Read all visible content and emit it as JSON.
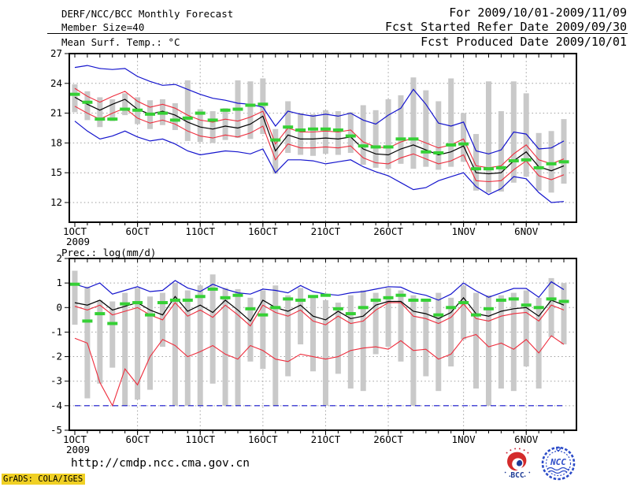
{
  "header": {
    "title": "DERF/NCC/BCC Monthly Forecast",
    "member_size": "Member Size=40",
    "temp_label": "Mean Surf. Temp.: °C",
    "for_range": "For 2009/10/01-2009/11/09",
    "started": "Fcst Started Refer Date 2009/09/30",
    "produced": "Fcst Produced Date 2009/10/01"
  },
  "footer": {
    "url": "http://cmdp.ncc.cma.gov.cn",
    "credit": "GrADS: COLA/IGES"
  },
  "logos": {
    "bcc": "BCC",
    "ncc": "NCC"
  },
  "colors": {
    "blue": "#1414cd",
    "red": "#ee2c3c",
    "black": "#000000",
    "green": "#35d035",
    "bar_gray": "#c9c9c9",
    "grid_gray": "#9e9e9e",
    "stamp_yellow": "#f0d024"
  },
  "chart_data": [
    {
      "type": "line",
      "title": "Mean Surf. Temp.: °C",
      "ylabel": "°C",
      "ylim": [
        10,
        27
      ],
      "yticks": [
        27,
        24,
        21,
        18,
        15,
        12
      ],
      "grid_y": [
        24,
        21,
        18,
        15,
        12
      ],
      "n_days": 40,
      "date_range": "2009/10/01-2009/11/09",
      "xticks": {
        "labels": [
          "1OCT",
          "6OCT",
          "11OCT",
          "16OCT",
          "21OCT",
          "26OCT",
          "1NOV",
          "6NOV"
        ],
        "days": [
          1,
          6,
          11,
          16,
          21,
          26,
          32,
          37
        ],
        "year": "2009",
        "grid_days": [
          6,
          11,
          16,
          21,
          26,
          32,
          37
        ]
      },
      "bars": {
        "name": "member-spread-bar",
        "color": "#c9c9c9",
        "hi": [
          23.9,
          23.2,
          22.6,
          22.4,
          23.0,
          22.6,
          22.3,
          22.4,
          22.0,
          24.3,
          21.4,
          21.2,
          21.5,
          24.3,
          24.2,
          24.5,
          19.4,
          22.2,
          21.0,
          20.9,
          21.3,
          21.2,
          21.1,
          21.8,
          21.3,
          22.4,
          22.8,
          24.6,
          23.3,
          22.2,
          24.5,
          21.0,
          18.9,
          24.2,
          21.2,
          24.2,
          23.0,
          19.0,
          19.2,
          20.4
        ],
        "lo": [
          21.1,
          20.3,
          19.6,
          20.2,
          20.8,
          19.9,
          19.4,
          19.8,
          19.3,
          18.2,
          18.1,
          18.0,
          18.3,
          18.5,
          18.4,
          18.9,
          14.9,
          17.0,
          16.8,
          16.7,
          16.9,
          16.8,
          17.0,
          15.8,
          15.5,
          15.4,
          15.9,
          15.4,
          15.6,
          15.3,
          15.6,
          16.1,
          13.2,
          13.0,
          13.1,
          14.0,
          14.6,
          13.2,
          13.0,
          13.9
        ]
      },
      "series": [
        {
          "name": "ensemble-max",
          "color": "#1414cd",
          "width": 1.2,
          "values": [
            25.6,
            25.8,
            25.5,
            25.4,
            25.5,
            24.7,
            24.2,
            23.8,
            23.9,
            23.4,
            22.9,
            22.5,
            22.3,
            22.0,
            21.9,
            21.6,
            19.7,
            21.2,
            20.9,
            20.7,
            20.9,
            20.7,
            21.0,
            20.3,
            19.9,
            20.8,
            21.5,
            23.4,
            21.9,
            20.0,
            19.7,
            20.1,
            17.2,
            16.9,
            17.3,
            19.1,
            18.9,
            17.4,
            17.5,
            18.2
          ]
        },
        {
          "name": "ensemble-min",
          "color": "#1414cd",
          "width": 1.2,
          "values": [
            20.2,
            19.2,
            18.4,
            18.7,
            19.2,
            18.6,
            18.2,
            18.4,
            17.9,
            17.2,
            16.8,
            17.0,
            17.2,
            17.1,
            16.9,
            17.4,
            15.0,
            16.3,
            16.3,
            16.2,
            15.9,
            16.1,
            16.3,
            15.6,
            15.1,
            14.7,
            14.0,
            13.3,
            13.5,
            14.2,
            14.6,
            15.0,
            13.6,
            12.8,
            13.4,
            14.6,
            14.4,
            13.0,
            12.0,
            12.1
          ]
        },
        {
          "name": "upper-envelope",
          "color": "#ee2c3c",
          "width": 1.1,
          "values": [
            23.5,
            22.7,
            22.1,
            22.7,
            23.2,
            22.2,
            21.6,
            21.9,
            21.5,
            20.8,
            20.3,
            20.1,
            20.4,
            20.2,
            20.6,
            21.2,
            17.9,
            19.5,
            19.1,
            19.1,
            19.2,
            19.1,
            19.3,
            18.1,
            17.6,
            17.5,
            18.1,
            18.5,
            18.0,
            17.5,
            17.8,
            18.4,
            15.7,
            15.5,
            15.7,
            16.9,
            17.8,
            16.3,
            15.9,
            16.4
          ]
        },
        {
          "name": "lower-envelope",
          "color": "#ee2c3c",
          "width": 1.1,
          "values": [
            21.7,
            21.0,
            20.4,
            21.0,
            21.5,
            20.5,
            20.0,
            20.3,
            19.9,
            19.2,
            18.7,
            18.5,
            18.8,
            18.6,
            19.0,
            19.7,
            16.3,
            17.9,
            17.5,
            17.5,
            17.6,
            17.5,
            17.7,
            16.5,
            16.0,
            15.9,
            16.5,
            16.9,
            16.4,
            15.9,
            16.2,
            16.8,
            14.2,
            14.1,
            14.2,
            15.3,
            16.2,
            14.7,
            14.3,
            14.8
          ]
        },
        {
          "name": "ensemble-mean",
          "color": "#000000",
          "width": 1.2,
          "values": [
            22.6,
            21.9,
            21.3,
            21.9,
            22.4,
            21.4,
            20.9,
            21.2,
            20.8,
            20.1,
            19.6,
            19.4,
            19.7,
            19.5,
            19.9,
            20.7,
            17.2,
            18.8,
            18.4,
            18.4,
            18.5,
            18.4,
            18.6,
            17.4,
            16.9,
            16.8,
            17.4,
            17.8,
            17.3,
            16.8,
            17.1,
            17.7,
            15.0,
            14.9,
            15.0,
            16.2,
            17.1,
            15.6,
            15.2,
            15.7
          ]
        }
      ],
      "observation": {
        "name": "observation",
        "color": "#35d035",
        "values": [
          22.9,
          22.1,
          20.4,
          20.4,
          21.4,
          21.3,
          20.9,
          21.0,
          20.3,
          20.5,
          21.0,
          20.3,
          21.3,
          21.4,
          21.8,
          21.9,
          18.3,
          19.6,
          19.3,
          19.4,
          19.4,
          19.3,
          18.7,
          17.7,
          17.6,
          17.6,
          18.4,
          18.4,
          17.1,
          17.0,
          17.8,
          17.9,
          15.4,
          15.4,
          15.5,
          16.2,
          16.3,
          15.5,
          15.9,
          16.1
        ]
      }
    },
    {
      "type": "line",
      "title": "Prec.: log(mm/d)",
      "ylabel": "log(mm/d)",
      "ylim": [
        -5,
        2
      ],
      "yticks": [
        2,
        1,
        0,
        -1,
        -2,
        -3,
        -4,
        -5
      ],
      "grid_y": [
        1,
        0,
        -1,
        -2,
        -3,
        -4
      ],
      "n_days": 40,
      "date_range": "2009/10/01-2009/11/09",
      "xticks": {
        "labels": [
          "1OCT",
          "6OCT",
          "11OCT",
          "16OCT",
          "21OCT",
          "26OCT",
          "1NOV",
          "6NOV"
        ],
        "days": [
          1,
          6,
          11,
          16,
          21,
          26,
          32,
          37
        ],
        "year": "2009",
        "grid_days": [
          6,
          11,
          16,
          21,
          26,
          32,
          37
        ]
      },
      "bars": {
        "name": "member-spread-bar",
        "color": "#c9c9c9",
        "hi": [
          1.5,
          0.85,
          0.3,
          0.25,
          0.6,
          0.8,
          0.45,
          0.6,
          1.0,
          0.7,
          0.9,
          1.35,
          0.8,
          0.75,
          0.4,
          0.7,
          0.9,
          0.5,
          0.8,
          0.5,
          0.3,
          0.2,
          0.5,
          0.7,
          0.6,
          0.8,
          0.7,
          0.5,
          0.3,
          0.6,
          0.4,
          0.9,
          0.6,
          0.5,
          0.5,
          0.6,
          0.7,
          0.4,
          1.2,
          1.0
        ],
        "lo": [
          -0.7,
          -3.7,
          -3.1,
          -2.45,
          -4.0,
          -3.75,
          -3.35,
          -1.6,
          -4.0,
          -4.0,
          -4.0,
          -3.1,
          -4.0,
          -4.0,
          -2.2,
          -2.5,
          -4.0,
          -2.8,
          -1.5,
          -2.6,
          -4.0,
          -2.7,
          -3.3,
          -3.4,
          -1.9,
          -1.6,
          -2.2,
          -4.0,
          -2.8,
          -3.4,
          -2.4,
          -1.3,
          -3.3,
          -4.0,
          -3.3,
          -3.4,
          -2.4,
          -3.3,
          -1.2,
          -1.5
        ]
      },
      "series": [
        {
          "name": "ensemble-max",
          "color": "#1414cd",
          "width": 1.2,
          "values": [
            0.95,
            0.8,
            1.0,
            0.55,
            0.7,
            0.85,
            0.65,
            0.7,
            1.1,
            0.8,
            0.65,
            0.95,
            0.75,
            0.6,
            0.55,
            0.75,
            0.7,
            0.6,
            0.9,
            0.65,
            0.55,
            0.5,
            0.6,
            0.65,
            0.75,
            0.85,
            0.83,
            0.6,
            0.5,
            0.3,
            0.55,
            1.0,
            0.68,
            0.42,
            0.6,
            0.78,
            0.78,
            0.42,
            1.05,
            0.73
          ]
        },
        {
          "name": "ensemble-min",
          "color": "#1414cd",
          "width": 1.2,
          "dash": "7 5",
          "values": [
            -4,
            -4,
            -4,
            -4,
            -4,
            -4,
            -4,
            -4,
            -4,
            -4,
            -4,
            -4,
            -4,
            -4,
            -4,
            -4,
            -4,
            -4,
            -4,
            -4,
            -4,
            -4,
            -4,
            -4,
            -4,
            -4,
            -4,
            -4,
            -4,
            -4,
            -4,
            -4,
            -4,
            -4,
            -4,
            -4,
            -4,
            -4,
            -4,
            -4
          ]
        },
        {
          "name": "upper-envelope",
          "color": "#ee2c3c",
          "width": 1.1,
          "values": [
            0.05,
            -0.1,
            0.1,
            -0.3,
            -0.15,
            0.0,
            -0.3,
            -0.5,
            0.2,
            -0.35,
            -0.1,
            -0.4,
            0.1,
            -0.3,
            -0.75,
            0.1,
            -0.2,
            -0.35,
            -0.1,
            -0.55,
            -0.7,
            -0.35,
            -0.65,
            -0.55,
            -0.1,
            0.2,
            0.2,
            -0.35,
            -0.45,
            -0.65,
            -0.4,
            0.15,
            -0.45,
            -0.55,
            -0.35,
            -0.25,
            -0.2,
            -0.55,
            0.1,
            -0.1
          ]
        },
        {
          "name": "lower-envelope",
          "color": "#ee2c3c",
          "width": 1.1,
          "values": [
            -1.25,
            -1.45,
            -3.05,
            -4.0,
            -2.5,
            -3.15,
            -2.0,
            -1.3,
            -1.55,
            -2.0,
            -1.8,
            -1.55,
            -1.9,
            -2.1,
            -1.55,
            -1.75,
            -2.1,
            -2.2,
            -1.9,
            -2.0,
            -2.1,
            -2.0,
            -1.75,
            -1.65,
            -1.6,
            -1.7,
            -1.35,
            -1.75,
            -1.7,
            -2.1,
            -1.9,
            -1.25,
            -1.1,
            -1.6,
            -1.45,
            -1.7,
            -1.3,
            -1.85,
            -1.15,
            -1.5
          ]
        },
        {
          "name": "ensemble-mean",
          "color": "#000000",
          "width": 1.2,
          "values": [
            0.2,
            0.1,
            0.3,
            -0.1,
            0.05,
            0.2,
            -0.1,
            -0.3,
            0.45,
            -0.15,
            0.1,
            -0.2,
            0.3,
            -0.1,
            -0.55,
            0.3,
            0.0,
            -0.15,
            0.1,
            -0.35,
            -0.5,
            -0.15,
            -0.45,
            -0.35,
            0.1,
            0.25,
            0.25,
            -0.15,
            -0.25,
            -0.45,
            -0.2,
            0.4,
            -0.25,
            -0.35,
            -0.15,
            -0.05,
            0.0,
            -0.35,
            0.3,
            0.1
          ]
        }
      ],
      "observation": {
        "name": "observation",
        "color": "#35d035",
        "values": [
          0.95,
          -0.55,
          -0.25,
          -0.65,
          0.15,
          0.2,
          -0.3,
          0.2,
          0.3,
          0.3,
          0.45,
          0.75,
          0.4,
          0.5,
          -0.05,
          -0.3,
          0.0,
          0.35,
          0.3,
          0.45,
          0.5,
          -0.05,
          -0.25,
          0.0,
          0.3,
          0.4,
          0.5,
          0.3,
          0.3,
          -0.3,
          0.0,
          0.2,
          -0.3,
          -0.05,
          0.3,
          0.35,
          0.1,
          0.0,
          0.35,
          0.25
        ]
      }
    }
  ]
}
